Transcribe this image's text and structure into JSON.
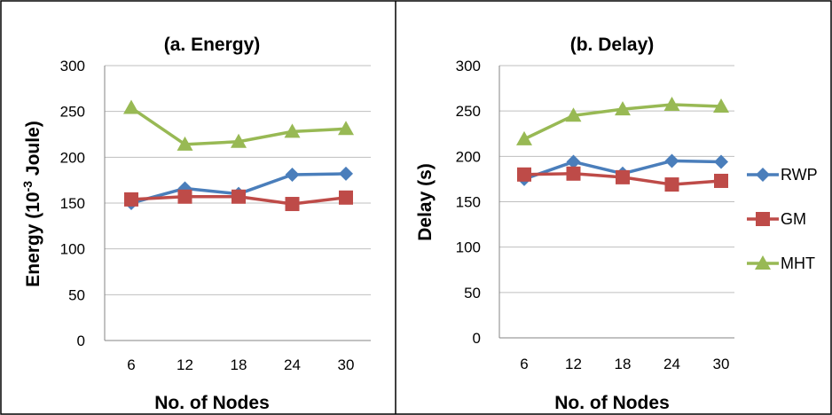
{
  "colors": {
    "RWP": "#4a7ebb",
    "GM": "#be4b48",
    "MHT": "#98b954"
  },
  "chart_data": [
    {
      "type": "line",
      "title": "(a. Energy)",
      "xlabel": "No. of Nodes",
      "ylabel_main": "Energy (10",
      "ylabel_sup": "-3",
      "ylabel_tail": " Joule)",
      "categories": [
        "6",
        "12",
        "18",
        "24",
        "30"
      ],
      "ylim": [
        0,
        300
      ],
      "yticks": [
        "0",
        "50",
        "100",
        "150",
        "200",
        "250",
        "300"
      ],
      "grid": true,
      "series": [
        {
          "name": "RWP",
          "marker": "diamond",
          "values": [
            150,
            166,
            160,
            181,
            182
          ]
        },
        {
          "name": "GM",
          "marker": "square",
          "values": [
            154,
            157,
            157,
            149,
            156
          ]
        },
        {
          "name": "MHT",
          "marker": "triangle",
          "values": [
            254,
            214,
            217,
            228,
            231
          ]
        }
      ]
    },
    {
      "type": "line",
      "title": "(b. Delay)",
      "xlabel": "No. of Nodes",
      "ylabel": "Delay (s)",
      "categories": [
        "6",
        "12",
        "18",
        "24",
        "30"
      ],
      "ylim": [
        0,
        300
      ],
      "yticks": [
        "0",
        "50",
        "100",
        "150",
        "200",
        "250",
        "300"
      ],
      "grid": true,
      "legend_position": "right",
      "series": [
        {
          "name": "RWP",
          "marker": "diamond",
          "values": [
            175,
            194,
            181,
            195,
            194
          ]
        },
        {
          "name": "GM",
          "marker": "square",
          "values": [
            180,
            181,
            177,
            169,
            173
          ]
        },
        {
          "name": "MHT",
          "marker": "triangle",
          "values": [
            219,
            245,
            252,
            257,
            255
          ]
        }
      ]
    }
  ]
}
